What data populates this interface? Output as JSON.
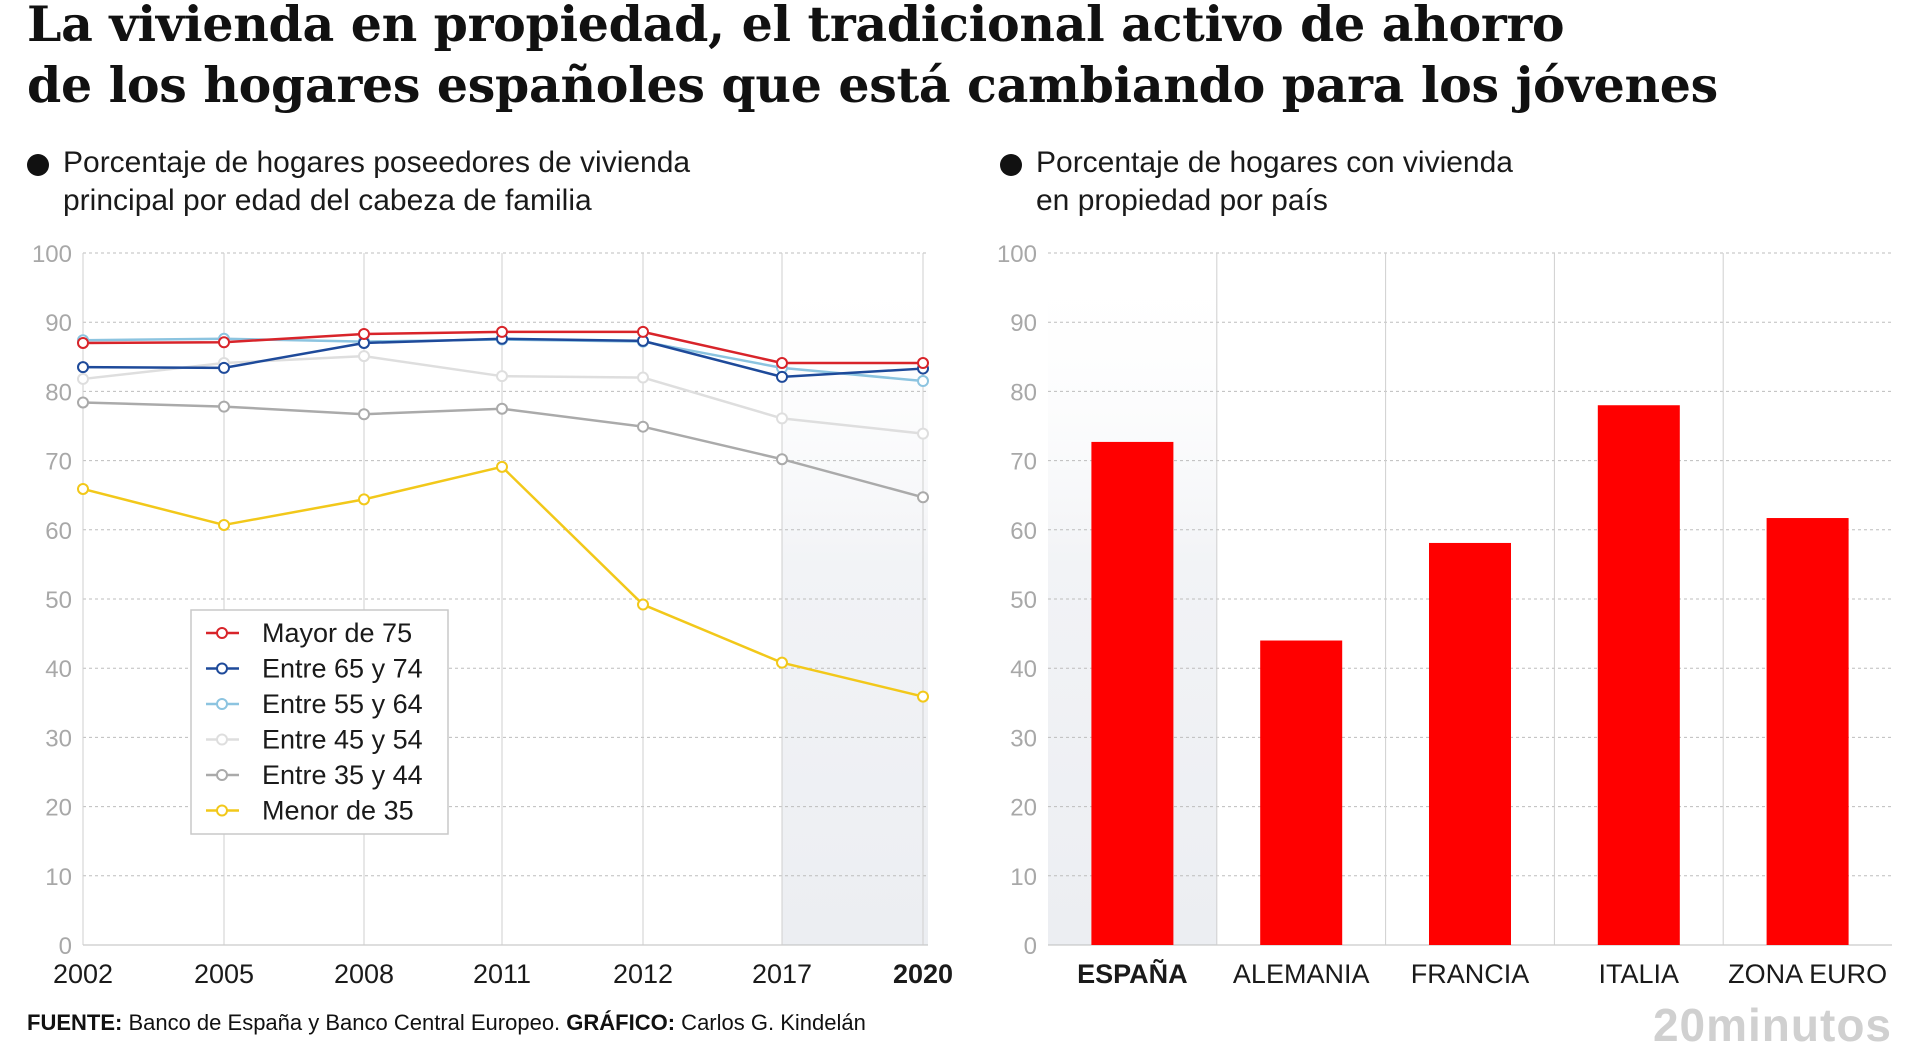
{
  "title": {
    "line1": "La vivienda en propiedad, el tradicional activo de ahorro",
    "line2": "de los hogares españoles que está cambiando para los jóvenes"
  },
  "left_subtitle": {
    "line1": "Porcentaje de hogares poseedores de vivienda",
    "line2": "principal por edad del cabeza de familia"
  },
  "right_subtitle": {
    "line1": "Porcentaje de hogares con vivienda",
    "line2": "en propiedad por país"
  },
  "footer": {
    "source_label": "FUENTE:",
    "source_text": " Banco de España y Banco Central Europeo.",
    "graphic_label": "GRÁFICO:",
    "graphic_text": " Carlos G. Kindelán"
  },
  "brand": "20minutos",
  "colors": {
    "bar": "#ff0000",
    "grid": "#bdbdbd",
    "axis_text": "#a8a8a8",
    "highlight_band": "#eceef2"
  },
  "chart_data": [
    {
      "type": "line",
      "title": "Porcentaje de hogares poseedores de vivienda principal por edad del cabeza de familia",
      "categories": [
        "2002",
        "2005",
        "2008",
        "2011",
        "2012",
        "2017",
        "2020"
      ],
      "highlighted_category": "2020",
      "ylim": [
        0,
        100
      ],
      "yticks": [
        0,
        10,
        20,
        30,
        40,
        50,
        60,
        70,
        80,
        90,
        100
      ],
      "legend_position": "bottom-left inside plot",
      "series": [
        {
          "name": "Menor de 35",
          "color": "#f2c81a",
          "values": [
            65.9,
            60.7,
            64.4,
            69.1,
            49.2,
            40.8,
            35.9
          ]
        },
        {
          "name": "Entre 35 y 44",
          "color": "#aaaaaa",
          "values": [
            78.4,
            77.8,
            76.7,
            77.5,
            74.9,
            70.2,
            64.7
          ]
        },
        {
          "name": "Entre 45 y 54",
          "color": "#dedede",
          "values": [
            81.8,
            84.1,
            85.1,
            82.2,
            82.0,
            76.1,
            73.9
          ]
        },
        {
          "name": "Entre 55 y 64",
          "color": "#8cc4e0",
          "values": [
            87.4,
            87.6,
            87.2,
            87.5,
            87.2,
            83.4,
            81.5
          ]
        },
        {
          "name": "Entre 65 y 74",
          "color": "#1e4a9a",
          "values": [
            83.5,
            83.4,
            87.0,
            87.6,
            87.3,
            82.1,
            83.3
          ]
        },
        {
          "name": "Mayor de 75",
          "color": "#d8242a",
          "values": [
            87.0,
            87.1,
            88.3,
            88.6,
            88.6,
            84.1,
            84.1
          ]
        }
      ],
      "legend_order": [
        "Mayor de 75",
        "Entre 65 y 74",
        "Entre 55 y 64",
        "Entre 45 y 54",
        "Entre 35 y 44",
        "Menor de 35"
      ]
    },
    {
      "type": "bar",
      "title": "Porcentaje de hogares con vivienda en propiedad por país",
      "categories": [
        "ESPAÑA",
        "ALEMANIA",
        "FRANCIA",
        "ITALIA",
        "ZONA EURO"
      ],
      "highlighted_category": "ESPAÑA",
      "values": [
        72.7,
        44.0,
        58.1,
        78.0,
        61.7
      ],
      "ylim": [
        0,
        100
      ],
      "yticks": [
        0,
        10,
        20,
        30,
        40,
        50,
        60,
        70,
        80,
        90,
        100
      ]
    }
  ]
}
